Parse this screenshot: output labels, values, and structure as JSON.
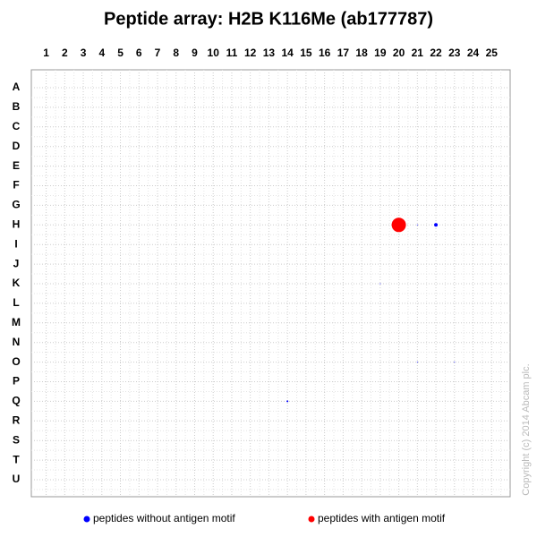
{
  "chart_data": {
    "type": "scatter",
    "title": "Peptide array:  H2B K116Me (ab177787)",
    "xticks": [
      1,
      2,
      3,
      4,
      5,
      6,
      7,
      8,
      9,
      10,
      11,
      12,
      13,
      14,
      15,
      16,
      17,
      18,
      19,
      20,
      21,
      22,
      23,
      24,
      25
    ],
    "xlim": [
      0.2,
      26
    ],
    "rows": [
      "A",
      "B",
      "C",
      "D",
      "E",
      "F",
      "G",
      "H",
      "I",
      "J",
      "K",
      "L",
      "M",
      "N",
      "O",
      "P",
      "Q",
      "R",
      "S",
      "T",
      "U"
    ],
    "grid": true,
    "series": [
      {
        "name": "peptides without antigen motif",
        "color": "#0000ff",
        "x": [
          21,
          22,
          19,
          21,
          23,
          14
        ],
        "y": [
          "H",
          "H",
          "K",
          "O",
          "O",
          "Q"
        ],
        "values": [
          0.5,
          2,
          0.5,
          0.5,
          0.5,
          1
        ]
      },
      {
        "name": "peptides with antigen motif",
        "color": "#ff0000",
        "x": [
          20
        ],
        "y": [
          "H"
        ],
        "values": [
          8
        ]
      }
    ],
    "copyright": "Copyright (c) 2014 Abcam plc."
  }
}
